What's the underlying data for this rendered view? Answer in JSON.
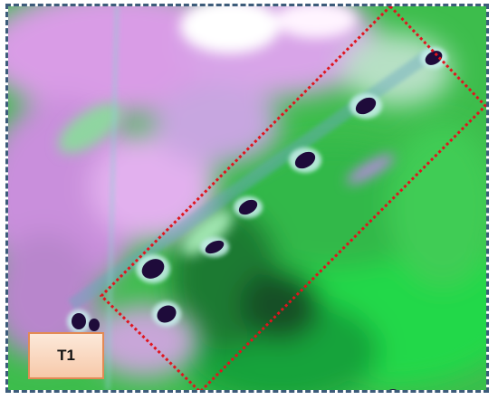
{
  "image": {
    "label": "T1",
    "colors": {
      "frame_border": "#3d5c7a",
      "highlight_rectangle": "#e0141e",
      "vegetation": "#3dbd4c",
      "bare_land": "#d99ce6",
      "water_spots": "#1e0b3a",
      "label_fill": "#f7c9a9",
      "label_border": "#e38a54"
    }
  }
}
